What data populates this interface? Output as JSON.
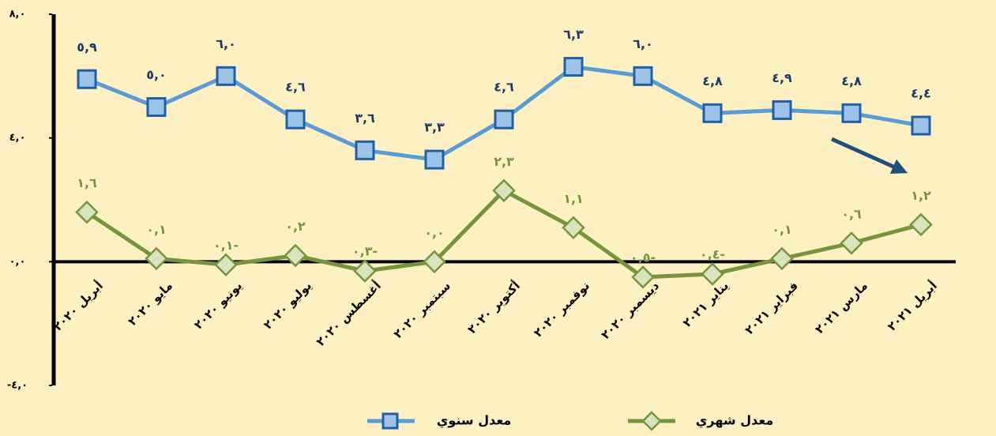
{
  "chart_data": {
    "type": "line",
    "categories": [
      "أبريل ٢٠٢٠",
      "مايو ٢٠٢٠",
      "يونيو ٢٠٢٠",
      "يوليو ٢٠٢٠",
      "أغسطس ٢٠٢٠",
      "سبتمبر ٢٠٢٠",
      "أكتوبر ٢٠٢٠",
      "نوفمبر ٢٠٢٠",
      "ديسمبر ٢٠٢٠",
      "يناير ٢٠٢١",
      "فبراير ٢٠٢١",
      "مارس ٢٠٢١",
      "أبريل ٢٠٢١"
    ],
    "series": [
      {
        "name": "معدل سنوي",
        "color": "#5b9bd5",
        "marker": "square",
        "values": [
          5.9,
          5.0,
          6.0,
          4.6,
          3.6,
          3.3,
          4.6,
          6.3,
          6.0,
          4.8,
          4.9,
          4.8,
          4.4
        ],
        "value_labels": [
          "٥,٩",
          "٥,٠",
          "٦,٠",
          "٤,٦",
          "٣,٦",
          "٣,٣",
          "٤,٦",
          "٦,٣",
          "٦,٠",
          "٤,٨",
          "٤,٩",
          "٤,٨",
          "٤,٤"
        ]
      },
      {
        "name": "معدل شهري",
        "color": "#77933c",
        "marker": "diamond",
        "values": [
          1.6,
          0.1,
          -0.1,
          0.2,
          -0.3,
          0.0,
          2.3,
          1.1,
          -0.5,
          -0.4,
          0.1,
          0.6,
          1.2
        ],
        "value_labels": [
          "١,٦",
          "٠,١",
          "٠,١-",
          "٠,٢",
          "٠,٣-",
          "٠,٠",
          "٢,٣",
          "١,١",
          "٠,٥-",
          "٠,٤-",
          "٠,١",
          "٠,٦",
          "١,٢"
        ]
      }
    ],
    "ylim": [
      -4,
      8
    ],
    "yticks": [
      {
        "value": -4,
        "label": "-٤,٠"
      },
      {
        "value": 0,
        "label": "٠,٠"
      },
      {
        "value": 4,
        "label": "٤,٠"
      },
      {
        "value": 8,
        "label": "٨,٠"
      }
    ],
    "legend": "bottom"
  }
}
